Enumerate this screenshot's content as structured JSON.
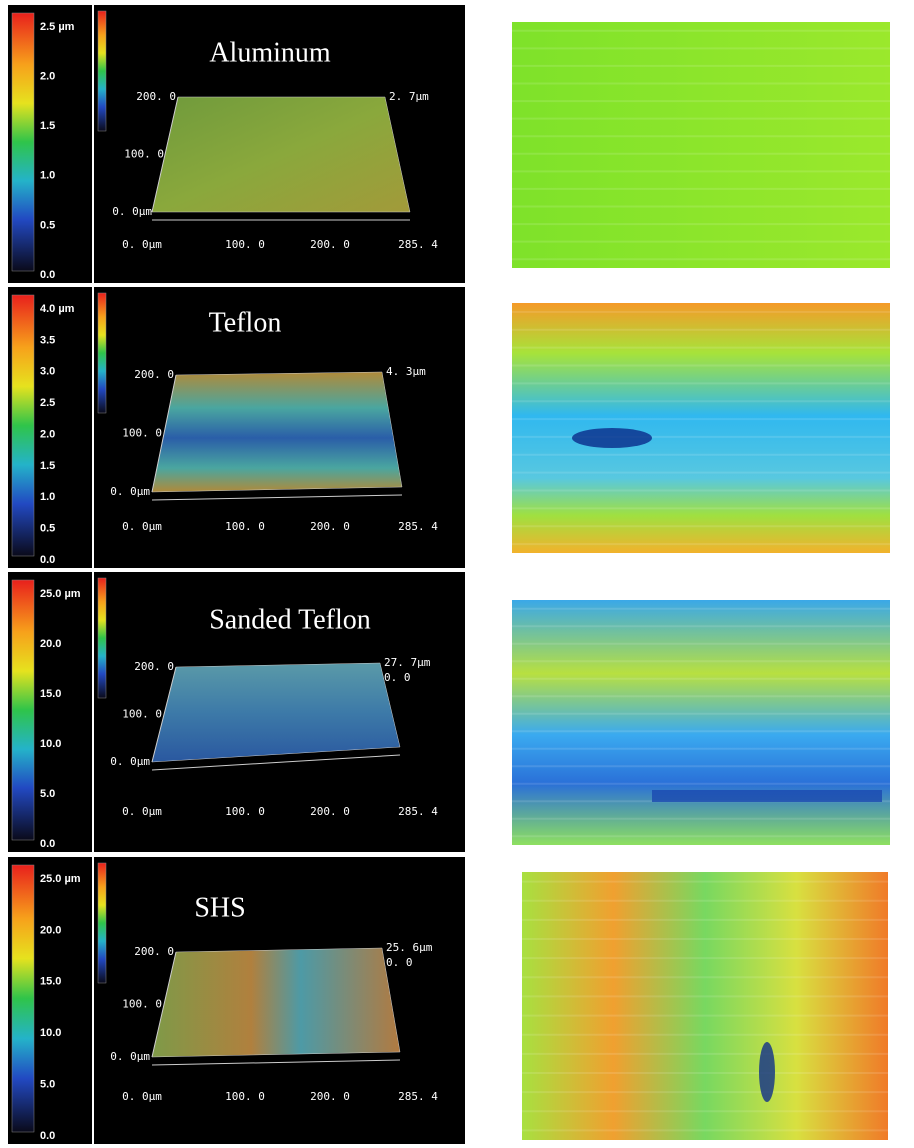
{
  "panels": [
    {
      "title": "Aluminum",
      "colorbar": [
        "2.5 µm",
        "2.0",
        "1.5",
        "1.0",
        "0.5",
        "0.0"
      ],
      "y_axis": [
        "200. 0",
        "100. 0",
        "0. 0µm"
      ],
      "x_axis": [
        "0. 0µm",
        "100. 0",
        "200. 0",
        "285. 4"
      ],
      "z_axis": [
        "2. 7µm"
      ]
    },
    {
      "title": "Teflon",
      "colorbar": [
        "4.0 µm",
        "3.5",
        "3.0",
        "2.5",
        "2.0",
        "1.5",
        "1.0",
        "0.5",
        "0.0"
      ],
      "y_axis": [
        "200. 0",
        "100. 0",
        "0. 0µm"
      ],
      "x_axis": [
        "0. 0µm",
        "100. 0",
        "200. 0",
        "285. 4"
      ],
      "z_axis": [
        "4. 3µm"
      ]
    },
    {
      "title": "Sanded Teflon",
      "colorbar": [
        "25.0 µm",
        "20.0",
        "15.0",
        "10.0",
        "5.0",
        "0.0"
      ],
      "y_axis": [
        "200. 0",
        "100. 0",
        "0. 0µm"
      ],
      "x_axis": [
        "0. 0µm",
        "100. 0",
        "200. 0",
        "285. 4"
      ],
      "z_axis": [
        "27. 7µm",
        "0. 0"
      ]
    },
    {
      "title": "SHS",
      "colorbar": [
        "25.0 µm",
        "20.0",
        "15.0",
        "10.0",
        "5.0",
        "0.0"
      ],
      "y_axis": [
        "200. 0",
        "100. 0",
        "0. 0µm"
      ],
      "x_axis": [
        "0. 0µm",
        "100. 0",
        "200. 0",
        "285. 4"
      ],
      "z_axis": [
        "25. 6µm",
        "0. 0"
      ]
    }
  ]
}
